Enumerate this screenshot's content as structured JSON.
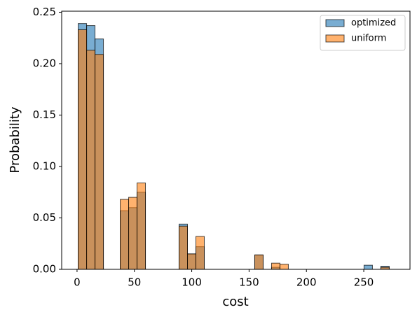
{
  "chart_data": {
    "type": "histogram",
    "xlabel": "cost",
    "ylabel": "Probability",
    "bins": [
      1,
      8.33,
      15.66,
      22.99,
      30.32,
      37.65,
      44.98,
      52.31,
      59.64,
      66.97,
      74.3,
      81.63,
      88.96,
      96.29,
      103.62,
      110.95,
      118.28,
      125.61,
      132.94,
      140.27,
      147.6,
      154.93,
      162.26,
      169.59,
      176.92,
      184.25,
      191.58,
      198.91,
      206.24,
      213.57,
      220.9,
      228.23,
      235.56,
      242.89,
      250.22,
      257.55,
      264.88,
      272.21
    ],
    "series": [
      {
        "name": "optimized",
        "color": "#1f77b4",
        "values": [
          0.239,
          0.237,
          0.224,
          0,
          0,
          0.057,
          0.06,
          0.075,
          0,
          0,
          0,
          0,
          0.044,
          0.015,
          0.022,
          0,
          0,
          0,
          0,
          0,
          0,
          0.014,
          0,
          0.002,
          0,
          0,
          0,
          0,
          0,
          0,
          0,
          0,
          0,
          0,
          0.004,
          0,
          0.003
        ]
      },
      {
        "name": "uniform",
        "color": "#ff7f0e",
        "values": [
          0.233,
          0.213,
          0.209,
          0,
          0,
          0.068,
          0.07,
          0.084,
          0,
          0,
          0,
          0,
          0.042,
          0.015,
          0.032,
          0,
          0,
          0,
          0,
          0,
          0,
          0.014,
          0,
          0.006,
          0.005,
          0,
          0,
          0,
          0,
          0,
          0,
          0,
          0,
          0,
          0,
          0,
          0.002
        ]
      }
    ],
    "xlim": [
      -13.4,
      290.3
    ],
    "ylim": [
      0,
      0.251
    ],
    "xticks": [
      0,
      50,
      100,
      150,
      200,
      250
    ],
    "yticks": [
      {
        "value": 0,
        "label": "0.00"
      },
      {
        "value": 0.05,
        "label": "0.05"
      },
      {
        "value": 0.1,
        "label": "0.10"
      },
      {
        "value": 0.15,
        "label": "0.15"
      },
      {
        "value": 0.2,
        "label": "0.20"
      },
      {
        "value": 0.25,
        "label": "0.25"
      }
    ],
    "opacity": 0.6,
    "legend": "upper right"
  }
}
